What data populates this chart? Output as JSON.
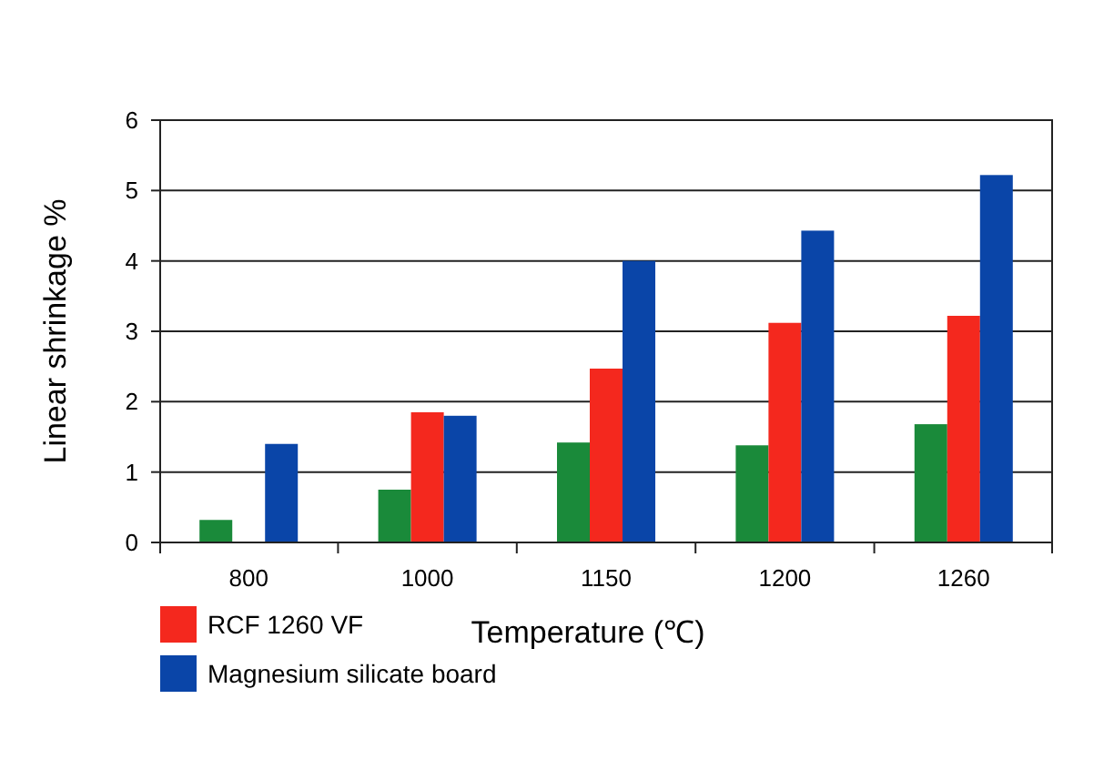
{
  "chart_data": {
    "type": "bar",
    "xlabel": "Temperature (℃)",
    "ylabel": "Linear shrinkage %",
    "categories": [
      "800",
      "1000",
      "1150",
      "1200",
      "1260"
    ],
    "series": [
      {
        "color": "#1a8a3a",
        "values": [
          0.32,
          0.75,
          1.42,
          1.38,
          1.68
        ]
      },
      {
        "name": "RCF 1260 VF",
        "color": "#f4281e",
        "values": [
          null,
          1.85,
          2.47,
          3.12,
          3.22
        ]
      },
      {
        "name": "Magnesium silicate board",
        "color": "#0a45a8",
        "values": [
          1.4,
          1.8,
          4.0,
          4.43,
          5.22
        ]
      }
    ],
    "ylim": [
      0,
      6
    ],
    "yticks": [
      0,
      1,
      2,
      3,
      4,
      5,
      6
    ],
    "grid": "y",
    "legend": "bottom"
  }
}
